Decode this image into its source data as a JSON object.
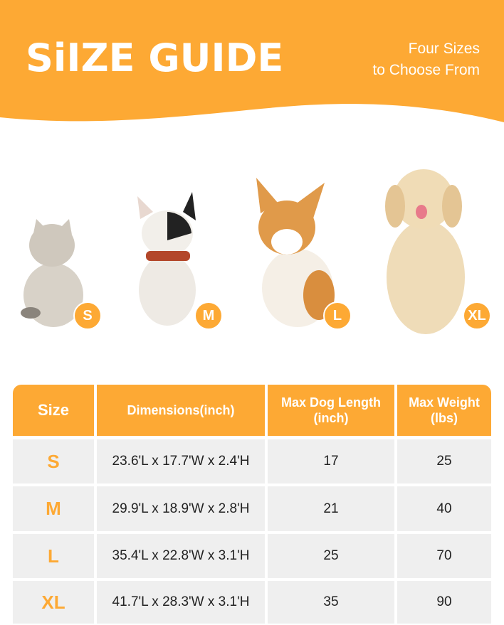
{
  "header": {
    "title": "SiIZE GUIDE",
    "subtitle_line1": "Four Sizes",
    "subtitle_line2": "to Choose From"
  },
  "colors": {
    "accent": "#FDA934",
    "row_bg": "#EFEFEF"
  },
  "animals": [
    {
      "kind": "cat",
      "size": "S"
    },
    {
      "kind": "french-bulldog",
      "size": "M"
    },
    {
      "kind": "corgi",
      "size": "L"
    },
    {
      "kind": "golden-retriever",
      "size": "XL"
    }
  ],
  "table": {
    "headers": [
      "Size",
      "Dimensions(inch)",
      "Max Dog Length (inch)",
      "Max Weight (lbs)"
    ],
    "rows": [
      [
        "S",
        "23.6'L x 17.7'W x 2.4'H",
        "17",
        "25"
      ],
      [
        "M",
        "29.9'L x 18.9'W x 2.8'H",
        "21",
        "40"
      ],
      [
        "L",
        "35.4'L x 22.8'W x 3.1'H",
        "25",
        "70"
      ],
      [
        "XL",
        "41.7'L x 28.3'W x 3.1'H",
        "35",
        "90"
      ]
    ]
  }
}
